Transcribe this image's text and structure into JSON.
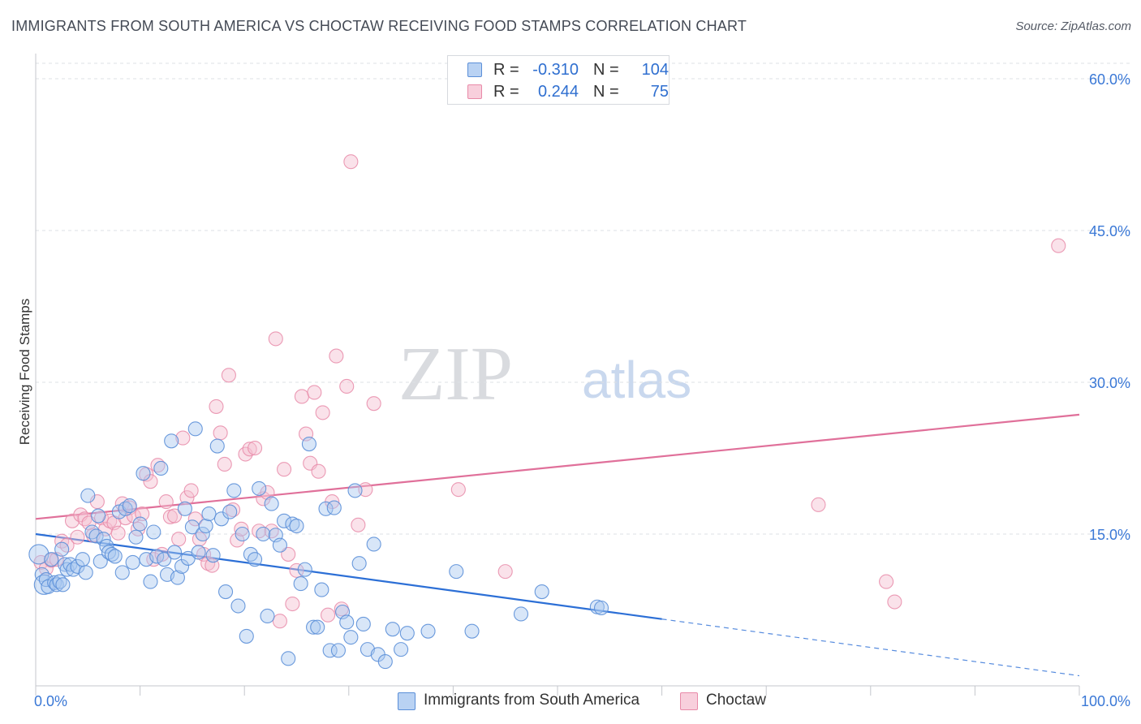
{
  "title": "IMMIGRANTS FROM SOUTH AMERICA VS CHOCTAW RECEIVING FOOD STAMPS CORRELATION CHART",
  "source": "Source: ZipAtlas.com",
  "watermark": {
    "zip": "ZIP",
    "atlas": "atlas"
  },
  "legend_top": {
    "rows": [
      {
        "r_label": "R =",
        "r_value": "-0.310",
        "n_label": "N =",
        "n_value": "104"
      },
      {
        "r_label": "R =",
        "r_value": "0.244",
        "n_label": "N =",
        "n_value": "75"
      }
    ]
  },
  "legend_bottom": [
    {
      "label": "Immigrants from South America"
    },
    {
      "label": "Choctaw"
    }
  ],
  "colors": {
    "blue_fill": "#a9c7f0",
    "blue_stroke": "#5b8fd8",
    "blue_line": "#2c6fd6",
    "pink_fill": "#f5bfd0",
    "pink_stroke": "#e88aa8",
    "pink_line": "#e0709a",
    "axis_label": "#3a78d6",
    "grid": "#dde0e4"
  },
  "chart_data": {
    "type": "scatter",
    "title": "IMMIGRANTS FROM SOUTH AMERICA VS CHOCTAW RECEIVING FOOD STAMPS CORRELATION CHART",
    "xlabel": "",
    "ylabel": "Receiving Food Stamps",
    "xlim": [
      0,
      100
    ],
    "ylim": [
      0,
      63
    ],
    "x_tick_labels": [
      "0.0%",
      "100.0%"
    ],
    "y_ticks": [
      15,
      30,
      45,
      60
    ],
    "y_tick_labels": [
      "15.0%",
      "30.0%",
      "45.0%",
      "60.0%"
    ],
    "grid": true,
    "legend_position": "top-center",
    "series": [
      {
        "name": "Immigrants from South America",
        "r": -0.31,
        "n": 104,
        "trend": {
          "x0": 0,
          "y0": 15.0,
          "x1": 60,
          "y1": 6.6,
          "dash_to_x": 100,
          "dash_to_y": 1.0
        },
        "points": [
          [
            0.3,
            13.0
          ],
          [
            0.6,
            11.0
          ],
          [
            0.8,
            10.0
          ],
          [
            1.0,
            10.5
          ],
          [
            1.2,
            9.8
          ],
          [
            1.5,
            12.5
          ],
          [
            1.8,
            10.2
          ],
          [
            2.0,
            10.0
          ],
          [
            2.3,
            10.3
          ],
          [
            2.6,
            10.0
          ],
          [
            2.5,
            13.5
          ],
          [
            2.8,
            12.0
          ],
          [
            3.0,
            11.5
          ],
          [
            3.3,
            12.0
          ],
          [
            3.6,
            11.5
          ],
          [
            4.0,
            11.8
          ],
          [
            4.5,
            12.5
          ],
          [
            4.8,
            11.2
          ],
          [
            5.0,
            18.8
          ],
          [
            5.4,
            15.2
          ],
          [
            5.8,
            14.8
          ],
          [
            6.0,
            16.8
          ],
          [
            6.2,
            12.3
          ],
          [
            6.5,
            14.5
          ],
          [
            6.8,
            13.8
          ],
          [
            7.0,
            13.2
          ],
          [
            7.3,
            13.0
          ],
          [
            7.6,
            12.8
          ],
          [
            8.0,
            17.2
          ],
          [
            8.3,
            11.2
          ],
          [
            8.6,
            17.5
          ],
          [
            9.0,
            17.8
          ],
          [
            9.3,
            12.2
          ],
          [
            9.6,
            14.7
          ],
          [
            10.0,
            16.0
          ],
          [
            10.3,
            21.0
          ],
          [
            10.6,
            12.5
          ],
          [
            11.0,
            10.3
          ],
          [
            11.3,
            15.2
          ],
          [
            11.6,
            12.8
          ],
          [
            12.0,
            21.5
          ],
          [
            12.3,
            12.5
          ],
          [
            12.6,
            11.0
          ],
          [
            13.0,
            24.2
          ],
          [
            13.3,
            13.2
          ],
          [
            13.6,
            10.7
          ],
          [
            14.0,
            11.8
          ],
          [
            14.3,
            17.5
          ],
          [
            14.6,
            12.6
          ],
          [
            15.0,
            15.7
          ],
          [
            15.3,
            25.4
          ],
          [
            15.6,
            13.2
          ],
          [
            16.0,
            15.0
          ],
          [
            16.3,
            15.8
          ],
          [
            16.6,
            17.0
          ],
          [
            17.0,
            12.9
          ],
          [
            17.4,
            23.7
          ],
          [
            17.8,
            16.5
          ],
          [
            18.2,
            9.3
          ],
          [
            18.6,
            17.2
          ],
          [
            19.0,
            19.3
          ],
          [
            19.4,
            7.9
          ],
          [
            19.8,
            15.0
          ],
          [
            20.2,
            4.9
          ],
          [
            20.6,
            13.0
          ],
          [
            21.0,
            12.5
          ],
          [
            21.4,
            19.5
          ],
          [
            21.8,
            15.0
          ],
          [
            22.2,
            6.9
          ],
          [
            22.6,
            18.0
          ],
          [
            23.0,
            14.9
          ],
          [
            23.4,
            13.9
          ],
          [
            23.8,
            16.3
          ],
          [
            24.2,
            2.7
          ],
          [
            24.6,
            16.0
          ],
          [
            25.0,
            15.8
          ],
          [
            25.4,
            10.1
          ],
          [
            25.8,
            11.5
          ],
          [
            26.2,
            23.9
          ],
          [
            26.6,
            5.8
          ],
          [
            27.0,
            5.8
          ],
          [
            27.4,
            9.5
          ],
          [
            27.8,
            17.5
          ],
          [
            28.2,
            3.5
          ],
          [
            28.6,
            17.6
          ],
          [
            29.0,
            3.5
          ],
          [
            29.4,
            7.3
          ],
          [
            29.8,
            6.3
          ],
          [
            30.2,
            4.8
          ],
          [
            30.6,
            19.3
          ],
          [
            31.0,
            12.1
          ],
          [
            31.4,
            6.1
          ],
          [
            31.8,
            3.6
          ],
          [
            32.4,
            14.0
          ],
          [
            32.8,
            3.1
          ],
          [
            33.5,
            2.4
          ],
          [
            34.2,
            5.6
          ],
          [
            35.0,
            3.6
          ],
          [
            35.6,
            5.2
          ],
          [
            37.6,
            5.4
          ],
          [
            40.3,
            11.3
          ],
          [
            41.8,
            5.4
          ],
          [
            46.5,
            7.1
          ],
          [
            48.5,
            9.3
          ],
          [
            53.8,
            7.8
          ],
          [
            54.2,
            7.7
          ]
        ]
      },
      {
        "name": "Choctaw",
        "r": 0.244,
        "n": 75,
        "trend": {
          "x0": 0,
          "y0": 16.5,
          "x1": 100,
          "y1": 26.8
        },
        "points": [
          [
            0.5,
            12.2
          ],
          [
            1.0,
            11.6
          ],
          [
            1.5,
            12.4
          ],
          [
            2.0,
            12.5
          ],
          [
            2.5,
            14.3
          ],
          [
            3.0,
            13.9
          ],
          [
            3.5,
            16.3
          ],
          [
            4.0,
            14.7
          ],
          [
            4.3,
            16.9
          ],
          [
            4.7,
            16.5
          ],
          [
            5.1,
            16.1
          ],
          [
            5.5,
            14.9
          ],
          [
            5.9,
            18.2
          ],
          [
            6.3,
            16.6
          ],
          [
            6.7,
            15.5
          ],
          [
            7.1,
            16.3
          ],
          [
            7.5,
            16.1
          ],
          [
            7.9,
            15.1
          ],
          [
            8.3,
            18.0
          ],
          [
            8.6,
            16.6
          ],
          [
            9.0,
            17.6
          ],
          [
            9.4,
            16.8
          ],
          [
            9.8,
            15.5
          ],
          [
            10.2,
            17.0
          ],
          [
            10.6,
            20.9
          ],
          [
            11.0,
            20.2
          ],
          [
            11.3,
            12.5
          ],
          [
            11.7,
            21.8
          ],
          [
            12.1,
            13.0
          ],
          [
            12.5,
            18.2
          ],
          [
            12.9,
            16.7
          ],
          [
            13.3,
            16.8
          ],
          [
            13.7,
            14.5
          ],
          [
            14.1,
            24.5
          ],
          [
            14.5,
            18.6
          ],
          [
            14.9,
            19.3
          ],
          [
            15.3,
            16.5
          ],
          [
            15.7,
            14.5
          ],
          [
            16.1,
            13.0
          ],
          [
            16.5,
            12.1
          ],
          [
            16.9,
            11.9
          ],
          [
            17.3,
            27.6
          ],
          [
            17.7,
            25.0
          ],
          [
            18.1,
            21.9
          ],
          [
            18.5,
            30.7
          ],
          [
            18.9,
            17.4
          ],
          [
            19.3,
            14.4
          ],
          [
            19.7,
            15.5
          ],
          [
            20.1,
            22.9
          ],
          [
            20.5,
            23.4
          ],
          [
            21.0,
            23.5
          ],
          [
            21.4,
            15.3
          ],
          [
            21.8,
            18.5
          ],
          [
            22.2,
            19.1
          ],
          [
            22.6,
            15.3
          ],
          [
            23.0,
            34.3
          ],
          [
            23.4,
            6.4
          ],
          [
            23.8,
            21.4
          ],
          [
            24.2,
            13.0
          ],
          [
            24.6,
            8.1
          ],
          [
            25.0,
            11.4
          ],
          [
            25.5,
            28.6
          ],
          [
            25.9,
            24.9
          ],
          [
            26.3,
            22.0
          ],
          [
            26.7,
            29.0
          ],
          [
            27.1,
            21.2
          ],
          [
            27.5,
            27.0
          ],
          [
            28.0,
            7.0
          ],
          [
            28.4,
            18.2
          ],
          [
            28.8,
            32.6
          ],
          [
            29.3,
            7.6
          ],
          [
            29.8,
            29.6
          ],
          [
            30.2,
            51.8
          ],
          [
            30.9,
            15.9
          ],
          [
            31.6,
            19.4
          ],
          [
            32.4,
            27.9
          ],
          [
            40.5,
            19.4
          ],
          [
            45.0,
            11.3
          ],
          [
            75.0,
            17.9
          ],
          [
            81.5,
            10.3
          ],
          [
            82.3,
            8.3
          ],
          [
            98.0,
            43.5
          ]
        ]
      }
    ]
  }
}
